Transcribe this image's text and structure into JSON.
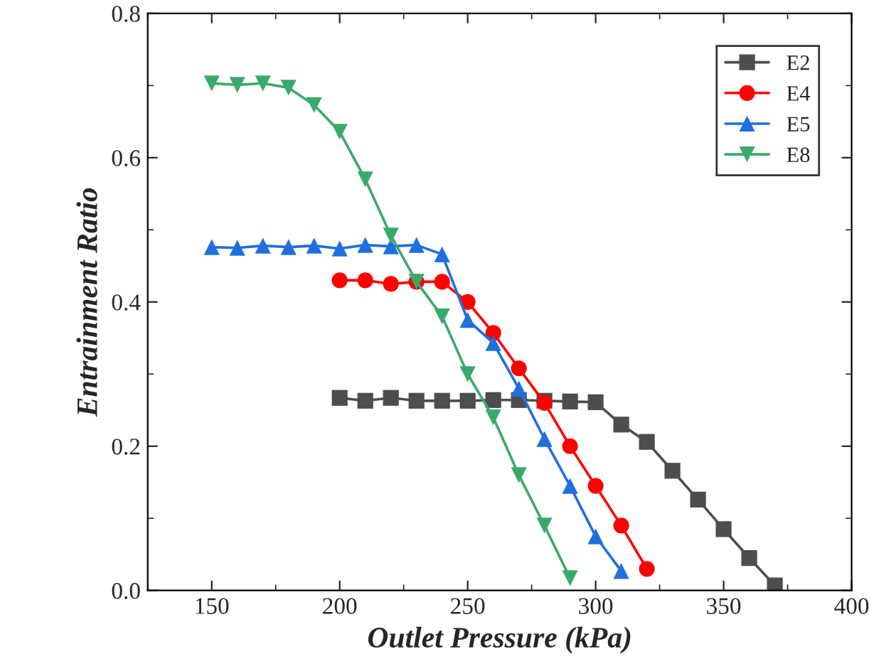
{
  "chart_data": {
    "type": "line",
    "xlabel": "Outlet Pressure (kPa)",
    "ylabel": "Entrainment Ratio",
    "xlim": [
      125,
      400
    ],
    "xticks": [
      150,
      200,
      250,
      300,
      350,
      400
    ],
    "ylim": [
      0,
      0.8
    ],
    "yticks": [
      {
        "value": 0,
        "label": "0.0"
      },
      0.2,
      0.4,
      0.6,
      0.8
    ],
    "grid": false,
    "legend": "top right",
    "line_style": "solid",
    "series": [
      {
        "name": "E2",
        "color": "#4d4d4d",
        "marker": "square",
        "x": [
          200,
          210,
          220,
          230,
          240,
          250,
          260,
          270,
          280,
          290,
          300,
          310,
          320,
          330,
          340,
          350,
          360,
          370
        ],
        "values": [
          0.267,
          0.263,
          0.267,
          0.263,
          0.263,
          0.263,
          0.264,
          0.264,
          0.263,
          0.262,
          0.261,
          0.23,
          0.206,
          0.166,
          0.126,
          0.085,
          0.045,
          0.007
        ]
      },
      {
        "name": "E4",
        "color": "#ff0000",
        "marker": "circle",
        "x": [
          200,
          210,
          220,
          230,
          240,
          250,
          260,
          270,
          280,
          290,
          300,
          310,
          320
        ],
        "values": [
          0.43,
          0.43,
          0.425,
          0.428,
          0.428,
          0.4,
          0.357,
          0.308,
          0.26,
          0.2,
          0.145,
          0.09,
          0.03
        ]
      },
      {
        "name": "E5",
        "color": "#1f6fe0",
        "marker": "triangle",
        "x": [
          150,
          160,
          170,
          180,
          190,
          200,
          210,
          220,
          230,
          240,
          250,
          260,
          270,
          280,
          290,
          300,
          310
        ],
        "values": [
          0.476,
          0.475,
          0.478,
          0.476,
          0.478,
          0.474,
          0.479,
          0.477,
          0.479,
          0.466,
          0.375,
          0.343,
          0.28,
          0.21,
          0.145,
          0.075,
          0.027
        ]
      },
      {
        "name": "E8",
        "color": "#3aaa6a",
        "marker": "triangle_down",
        "x": [
          150,
          160,
          170,
          180,
          190,
          200,
          210,
          220,
          230,
          240,
          250,
          260,
          270,
          280,
          290
        ],
        "values": [
          0.703,
          0.701,
          0.703,
          0.697,
          0.673,
          0.636,
          0.57,
          0.492,
          0.428,
          0.38,
          0.3,
          0.24,
          0.16,
          0.09,
          0.017
        ]
      }
    ]
  }
}
